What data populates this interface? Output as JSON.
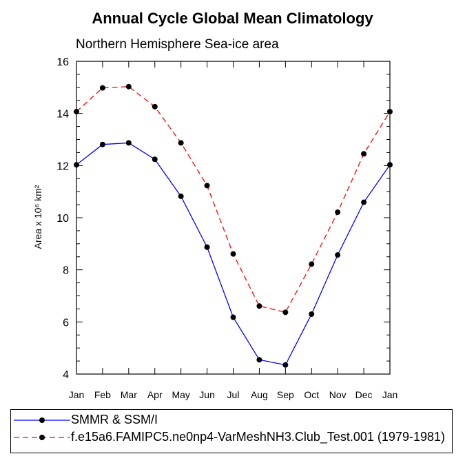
{
  "chart_data": {
    "type": "line",
    "title": "Annual Cycle Global Mean Climatology",
    "subtitle": "Northern Hemisphere Sea-ice area",
    "ylabel": "Area x 10⁶ km²",
    "xlabel": "",
    "categories": [
      "Jan",
      "Feb",
      "Mar",
      "Apr",
      "May",
      "Jun",
      "Jul",
      "Aug",
      "Sep",
      "Oct",
      "Nov",
      "Dec",
      "Jan"
    ],
    "ylim": [
      4,
      16
    ],
    "yticks": [
      4,
      6,
      8,
      10,
      12,
      14,
      16
    ],
    "grid": false,
    "legend_position": "bottom",
    "series": [
      {
        "name": "SMMR & SSM/I",
        "color": "#0000ff",
        "style": "solid",
        "values": [
          12.03,
          12.81,
          12.87,
          12.24,
          10.82,
          8.87,
          6.18,
          4.55,
          4.35,
          6.3,
          8.57,
          10.59,
          12.03
        ]
      },
      {
        "name": "f.e15a6.FAMIPC5.ne0np4-VarMeshNH3.Club_Test.001 (1979-1981)",
        "color": "#ff0000",
        "style": "dashed",
        "values": [
          14.07,
          14.98,
          15.03,
          14.26,
          12.87,
          11.23,
          8.61,
          6.61,
          6.37,
          8.22,
          10.21,
          12.45,
          14.07
        ]
      }
    ]
  }
}
